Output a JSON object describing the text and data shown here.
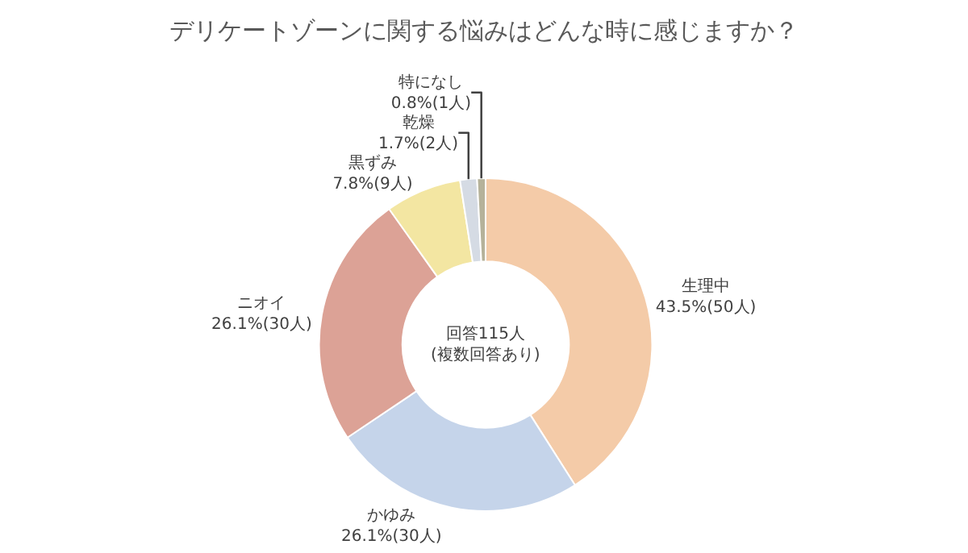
{
  "chart_data": {
    "type": "donut",
    "title": "デリケートゾーンに関する悩みはどんな時に感じますか？",
    "categories": [
      "生理中",
      "かゆみ",
      "ニオイ",
      "黒ずみ",
      "乾燥",
      "特になし"
    ],
    "values": [
      50,
      30,
      30,
      9,
      2,
      1
    ],
    "value_labels": [
      "43.5%(50人)",
      "26.1%(30人)",
      "26.1%(30人)",
      "7.8%(9人)",
      "1.7%(2人)",
      "0.8%(1人)"
    ],
    "colors": [
      "#f4cba8",
      "#c5d4ea",
      "#dca296",
      "#f3e6a2",
      "#d5dbe4",
      "#b5b29a"
    ],
    "annotations": [
      "回答115人\n(複数回答あり)"
    ],
    "legend": false
  }
}
